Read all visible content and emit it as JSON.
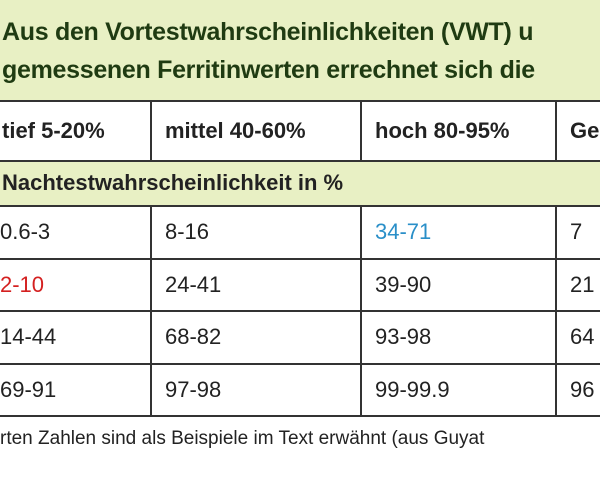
{
  "header": {
    "lines": [
      "Aus den Vortestwahrscheinlichkeiten (VWT) u",
      "gemessenen Ferritinwerten errechnet sich die"
    ]
  },
  "table": {
    "columns": [
      "tief 5-20%",
      "mittel 40-60%",
      "hoch 80-95%",
      "Ge"
    ],
    "section": "Nachtestwahrscheinlichkeit in %",
    "rows": [
      [
        "0.6-3",
        "8-16",
        "34-71",
        "7"
      ],
      [
        "2-10",
        "24-41",
        "39-90",
        "21"
      ],
      [
        "14-44",
        "68-82",
        "93-98",
        "64"
      ],
      [
        "69-91",
        "97-98",
        "99-99.9",
        "96"
      ]
    ]
  },
  "footnote": "rten Zahlen sind als Beispiele im Text erwähnt (aus Guyat"
}
